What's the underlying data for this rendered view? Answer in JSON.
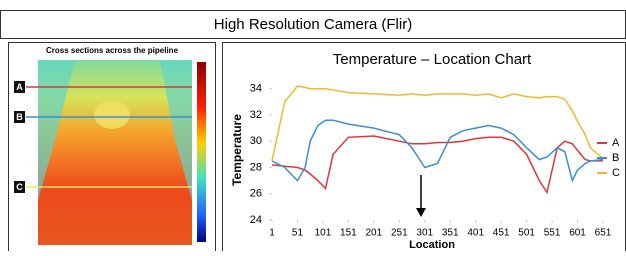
{
  "header": {
    "title": "High Resolution Camera (Flir)"
  },
  "thermal_image": {
    "title": "Cross sections across the pipeline",
    "labels": [
      "A",
      "B",
      "C"
    ]
  },
  "chart_data": {
    "type": "line",
    "title": "Temperature – Location Chart",
    "x_label": "Location",
    "y_label": "Temperature",
    "x": [
      1,
      26,
      51,
      66,
      76,
      91,
      106,
      121,
      151,
      201,
      251,
      276,
      301,
      326,
      351,
      376,
      401,
      426,
      451,
      476,
      501,
      526,
      541,
      561,
      576,
      591,
      601,
      616,
      626,
      651
    ],
    "series": [
      {
        "name": "A",
        "color": "#e0353b",
        "values": [
          28.2,
          28.1,
          28,
          27.8,
          27.5,
          27,
          26.4,
          29,
          30.3,
          30.4,
          30,
          29.8,
          29.8,
          29.9,
          29.9,
          30,
          30.2,
          30.3,
          30.3,
          30,
          29,
          27,
          26.1,
          29.5,
          30,
          29.8,
          29.3,
          28.6,
          28.5,
          28.5
        ]
      },
      {
        "name": "B",
        "color": "#3a8fd0",
        "values": [
          28.5,
          28,
          27,
          28,
          30,
          31.2,
          31.6,
          31.6,
          31.3,
          31,
          30.5,
          29.5,
          28,
          28.3,
          30.3,
          30.8,
          31,
          31.2,
          31,
          30.5,
          29.5,
          28.6,
          28.8,
          29.5,
          29.2,
          27,
          27.8,
          28.3,
          28.5,
          28.6
        ]
      },
      {
        "name": "C",
        "color": "#f5b731",
        "values": [
          28.5,
          33,
          34.2,
          34.1,
          34,
          34,
          34,
          33.9,
          33.7,
          33.6,
          33.5,
          33.6,
          33.5,
          33.6,
          33.6,
          33.6,
          33.5,
          33.6,
          33.3,
          33.6,
          33.4,
          33.3,
          33.4,
          33.4,
          33.2,
          32.3,
          31.5,
          30.5,
          29.5,
          28.7
        ]
      }
    ],
    "xlim": [
      1,
      651
    ],
    "xticks": [
      1,
      51,
      101,
      151,
      201,
      251,
      301,
      351,
      401,
      451,
      501,
      551,
      601,
      651
    ],
    "ylim": [
      24,
      35.5
    ],
    "yticks": [
      24,
      26,
      28,
      30,
      32,
      34
    ],
    "grid": false,
    "legend": "right"
  }
}
